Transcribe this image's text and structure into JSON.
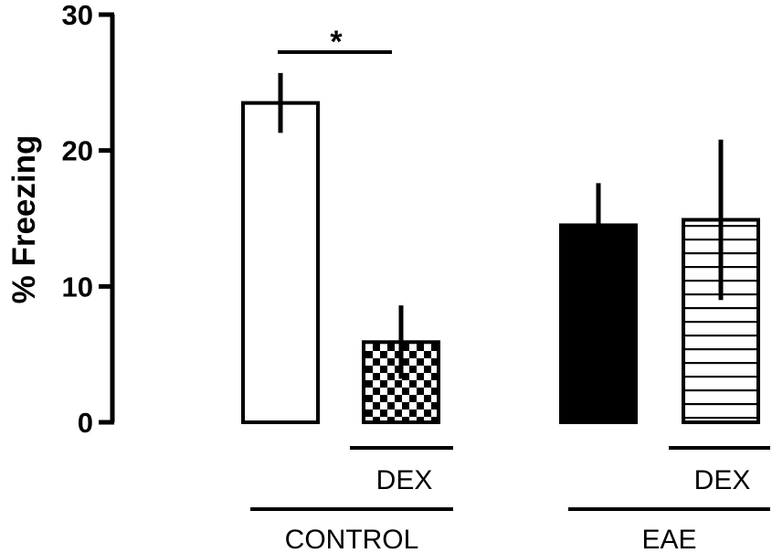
{
  "chart_data": {
    "type": "bar",
    "title": "",
    "ylabel": "% Freezing",
    "xlabel": "",
    "ylim": [
      0,
      30
    ],
    "yticks": [
      0,
      10,
      20,
      30
    ],
    "grid": false,
    "bars": [
      {
        "group": "CONTROL",
        "treatment": "",
        "value": 23.5,
        "error": 2.2,
        "fill": "white"
      },
      {
        "group": "CONTROL",
        "treatment": "DEX",
        "value": 5.9,
        "error": 2.7,
        "fill": "checkerboard"
      },
      {
        "group": "EAE",
        "treatment": "",
        "value": 14.5,
        "error": 3.1,
        "fill": "black"
      },
      {
        "group": "EAE",
        "treatment": "DEX",
        "value": 14.9,
        "error": 5.9,
        "fill": "horizontal-stripes"
      }
    ],
    "group_labels": [
      "CONTROL",
      "EAE"
    ],
    "treatment_labels": [
      "DEX",
      "DEX"
    ],
    "significance": [
      {
        "between": [
          0,
          1
        ],
        "label": "*"
      }
    ]
  }
}
